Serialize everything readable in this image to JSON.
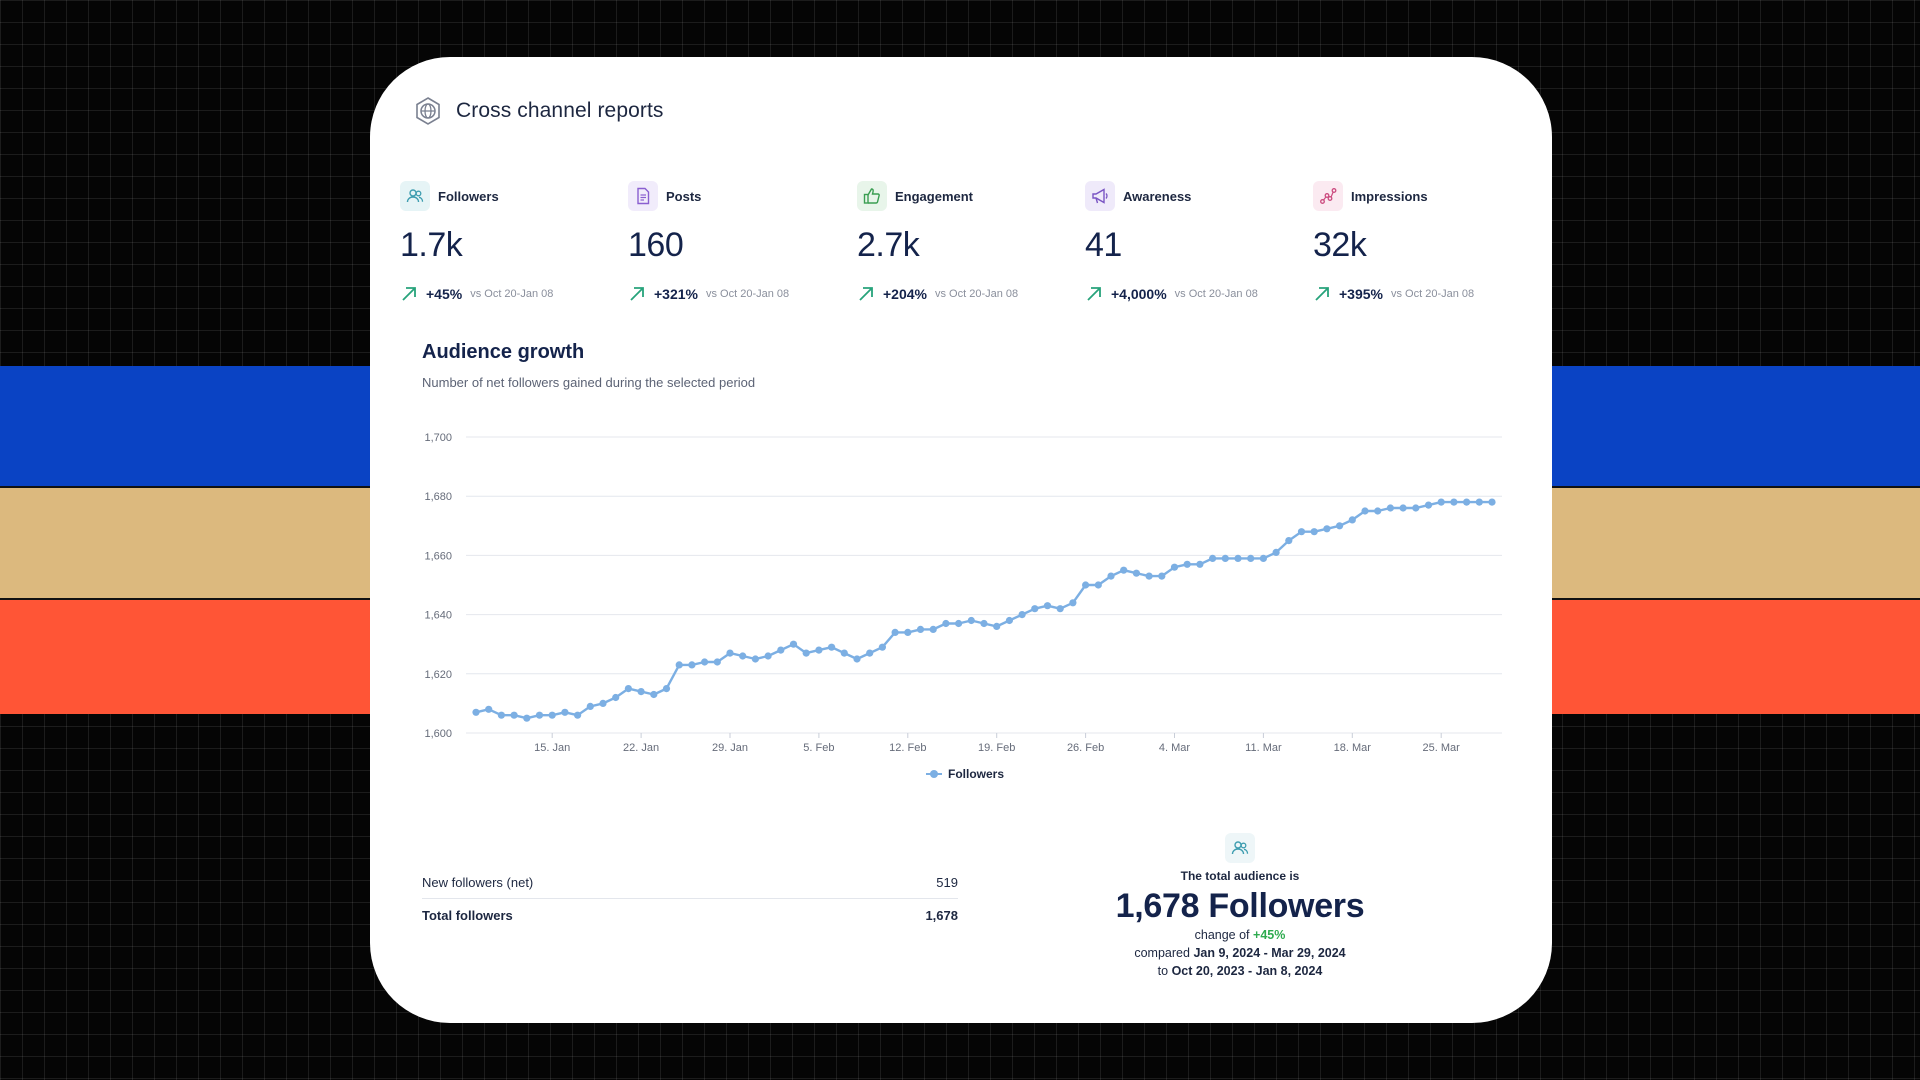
{
  "header": {
    "title": "Cross channel reports",
    "icon": "globe-icon"
  },
  "metrics": [
    {
      "label": "Followers",
      "value": "1.7k",
      "change": "+45%",
      "vs": "vs Oct 20-Jan 08",
      "icon": "users-icon",
      "icon_bg": "#e6f4f6",
      "icon_color": "#3e9db0"
    },
    {
      "label": "Posts",
      "value": "160",
      "change": "+321%",
      "vs": "vs Oct 20-Jan 08",
      "icon": "document-icon",
      "icon_bg": "#f1ecfb",
      "icon_color": "#8a5fd0"
    },
    {
      "label": "Engagement",
      "value": "2.7k",
      "change": "+204%",
      "vs": "vs Oct 20-Jan 08",
      "icon": "thumbs-up-icon",
      "icon_bg": "#e8f5ea",
      "icon_color": "#3a9e52"
    },
    {
      "label": "Awareness",
      "value": "41",
      "change": "+4,000%",
      "vs": "vs Oct 20-Jan 08",
      "icon": "megaphone-icon",
      "icon_bg": "#efeafa",
      "icon_color": "#7a55c4"
    },
    {
      "label": "Impressions",
      "value": "32k",
      "change": "+395%",
      "vs": "vs Oct 20-Jan 08",
      "icon": "trend-icon",
      "icon_bg": "#fbeaf1",
      "icon_color": "#cc4d80"
    }
  ],
  "colors": {
    "up_arrow": "#27a37b",
    "line": "#7cafe3",
    "grid": "#e4e7ed"
  },
  "audience_growth": {
    "title": "Audience growth",
    "subtitle": "Number of net followers gained during the selected period"
  },
  "chart_data": {
    "type": "line",
    "title": "Audience growth",
    "subtitle": "Number of net followers gained during the selected period",
    "xlabel": "",
    "ylabel": "",
    "ylim": [
      1600,
      1700
    ],
    "yticks": [
      1600,
      1620,
      1640,
      1660,
      1680,
      1700
    ],
    "x_range": [
      "2024-01-09",
      "2024-03-29"
    ],
    "xtick_labels": [
      "15. Jan",
      "22. Jan",
      "29. Jan",
      "5. Feb",
      "12. Feb",
      "19. Feb",
      "26. Feb",
      "4. Mar",
      "11. Mar",
      "18. Mar",
      "25. Mar"
    ],
    "grid": true,
    "legend": "bottom-center",
    "series": [
      {
        "name": "Followers",
        "color": "#7cafe3",
        "values": [
          1607,
          1608,
          1606,
          1606,
          1605,
          1606,
          1606,
          1607,
          1606,
          1609,
          1610,
          1612,
          1615,
          1614,
          1613,
          1615,
          1623,
          1623,
          1624,
          1624,
          1627,
          1626,
          1625,
          1626,
          1628,
          1630,
          1627,
          1628,
          1629,
          1627,
          1625,
          1627,
          1629,
          1634,
          1634,
          1635,
          1635,
          1637,
          1637,
          1638,
          1637,
          1636,
          1638,
          1640,
          1642,
          1643,
          1642,
          1644,
          1650,
          1650,
          1653,
          1655,
          1654,
          1653,
          1653,
          1656,
          1657,
          1657,
          1659,
          1659,
          1659,
          1659,
          1659,
          1661,
          1665,
          1668,
          1668,
          1669,
          1670,
          1672,
          1675,
          1675,
          1676,
          1676,
          1676,
          1677,
          1678,
          1678,
          1678,
          1678,
          1678
        ]
      }
    ]
  },
  "summary": {
    "rows": [
      {
        "label": "New followers (net)",
        "value": "519"
      },
      {
        "label": "Total followers",
        "value": "1,678"
      }
    ]
  },
  "audience": {
    "icon": "users-icon",
    "intro": "The total audience is",
    "big": "1,678 Followers",
    "change_prefix": "change of",
    "change_value": "+45%",
    "compared_prefix": "compared",
    "compared_range": "Jan 9, 2024 - Mar 29, 2024",
    "to_prefix": "to",
    "to_range": "Oct 20, 2023 - Jan 8, 2024"
  }
}
